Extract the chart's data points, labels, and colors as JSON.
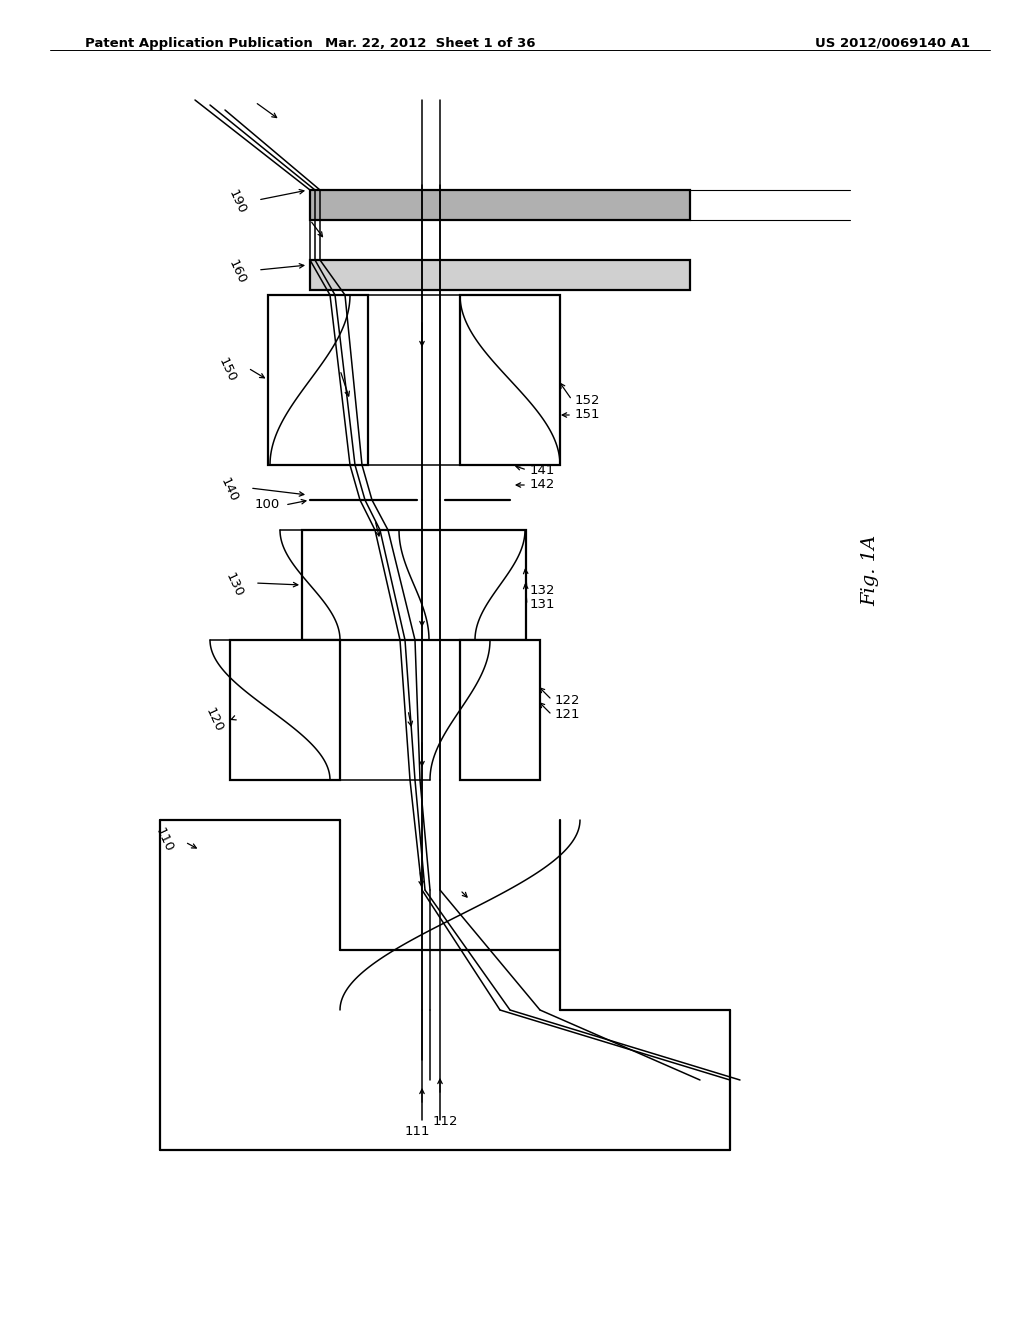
{
  "header_left": "Patent Application Publication",
  "header_mid": "Mar. 22, 2012  Sheet 1 of 36",
  "header_right": "US 2012/0069140 A1",
  "fig_label": "Fig. 1A",
  "background": "#ffffff",
  "line_color": "#000000",
  "lw": 1.1,
  "lw_thick": 1.6,
  "fs_label": 9.5,
  "fs_header": 9.5,
  "fs_figlabel": 14
}
